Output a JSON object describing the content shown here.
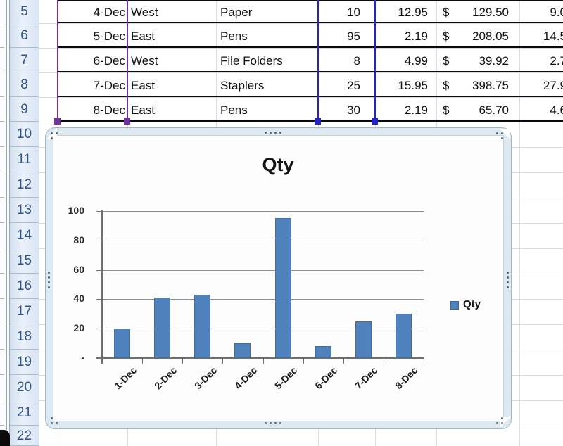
{
  "app_title": "Excel worksheet with embedded chart",
  "sheet": {
    "row_numbers": [
      "5",
      "6",
      "7",
      "8",
      "9",
      "10",
      "11",
      "12",
      "13",
      "14",
      "15",
      "16",
      "17",
      "18",
      "19",
      "20",
      "21",
      "22"
    ],
    "table": {
      "currency_symbol": "$",
      "rows": [
        {
          "date": "4-Dec",
          "region": "West",
          "item": "Paper",
          "qty": "10",
          "price": "12.95",
          "total": "129.50",
          "extra": "9.0"
        },
        {
          "date": "5-Dec",
          "region": "East",
          "item": "Pens",
          "qty": "95",
          "price": "2.19",
          "total": "208.05",
          "extra": "14.5"
        },
        {
          "date": "6-Dec",
          "region": "West",
          "item": "File Folders",
          "qty": "8",
          "price": "4.99",
          "total": "39.92",
          "extra": "2.7"
        },
        {
          "date": "7-Dec",
          "region": "East",
          "item": "Staplers",
          "qty": "25",
          "price": "15.95",
          "total": "398.75",
          "extra": "27.9"
        },
        {
          "date": "8-Dec",
          "region": "East",
          "item": "Pens",
          "qty": "30",
          "price": "2.19",
          "total": "65.70",
          "extra": "4.6"
        }
      ]
    },
    "selection": {
      "category_range_color": "#7030a0",
      "series_range_color": "#2323c8"
    }
  },
  "chart_data": {
    "type": "bar",
    "title": "Qty",
    "categories": [
      "1-Dec",
      "2-Dec",
      "3-Dec",
      "4-Dec",
      "5-Dec",
      "6-Dec",
      "7-Dec",
      "8-Dec"
    ],
    "series": [
      {
        "name": "Qty",
        "values": [
          20,
          41,
          43,
          10,
          95,
          8,
          25,
          30
        ],
        "color": "#4f81bd"
      }
    ],
    "xlabel": "",
    "ylabel": "",
    "ylim": [
      0,
      100
    ],
    "yticks": [
      0,
      20,
      40,
      60,
      80,
      100
    ],
    "ytick_labels": [
      "-",
      "20",
      "40",
      "60",
      "80",
      "100"
    ],
    "grid": true,
    "legend_position": "right"
  }
}
